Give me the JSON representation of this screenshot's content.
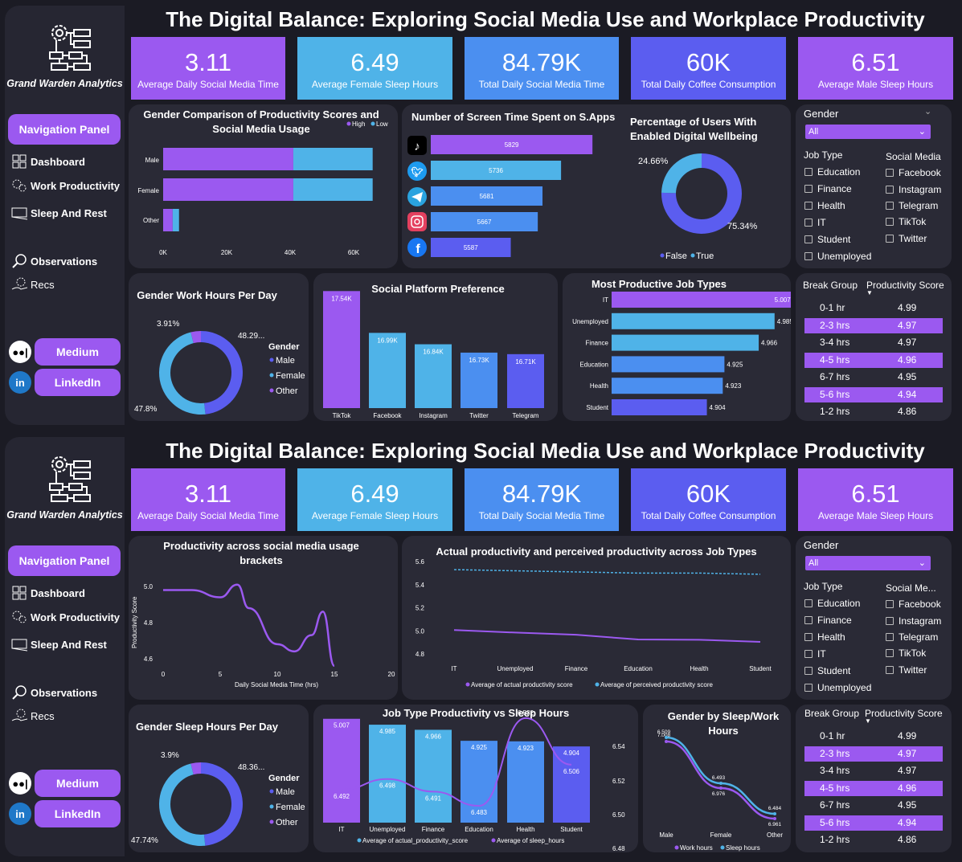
{
  "dashboards": [
    {
      "brand": "Grand Warden Analytics",
      "nav_panel": "Navigation Panel",
      "nav": [
        "Dashboard",
        "Work Productivity",
        "Sleep And Rest",
        "Observations",
        "Recs"
      ],
      "medium": "Medium",
      "linkedin": "LinkedIn",
      "title": "The Digital Balance: Exploring Social Media Use and Workplace Productivity",
      "kpis": [
        {
          "value": "3.11",
          "label": "Average Daily Social Media Time",
          "color": "#9b59f0"
        },
        {
          "value": "6.49",
          "label": "Average Female Sleep Hours",
          "color": "#4fb3e8"
        },
        {
          "value": "84.79K",
          "label": "Total Daily Social Media Time",
          "color": "#4b8ff0"
        },
        {
          "value": "60K",
          "label": "Total Daily Coffee Consumption",
          "color": "#5b5df0"
        },
        {
          "value": "6.51",
          "label": "Average Male Sleep Hours",
          "color": "#9b59f0"
        }
      ],
      "filters": {
        "gender_label": "Gender",
        "gender_value": "All",
        "job_label": "Job Type",
        "jobs": [
          "Education",
          "Finance",
          "Health",
          "IT",
          "Student",
          "Unemployed"
        ],
        "social_label": "Social Media",
        "socials": [
          "Facebook",
          "Instagram",
          "Telegram",
          "TikTok",
          "Twitter"
        ]
      },
      "break_table": {
        "col1": "Break Group",
        "col2": "Productivity Score",
        "rows": [
          [
            "0-1 hr",
            "4.99"
          ],
          [
            "2-3 hrs",
            "4.97"
          ],
          [
            "3-4 hrs",
            "4.97"
          ],
          [
            "4-5 hrs",
            "4.96"
          ],
          [
            "6-7 hrs",
            "4.95"
          ],
          [
            "5-6 hrs",
            "4.94"
          ],
          [
            "1-2 hrs",
            "4.86"
          ]
        ]
      },
      "gender_prod": {
        "title": "Gender Comparison of Productivity Scores and Social Media Usage",
        "legend": [
          "High",
          "Low"
        ],
        "colors": [
          "#9b59f0",
          "#4fb3e8"
        ],
        "categories": [
          "Male",
          "Female",
          "Other"
        ],
        "ticks": [
          "0K",
          "20K",
          "40K",
          "60K"
        ]
      },
      "screen_time": {
        "title": "Number of Screen Time Spent on S.Apps",
        "apps": [
          "tiktok-icon",
          "twitter-icon",
          "telegram-icon",
          "instagram-icon",
          "facebook-icon"
        ],
        "labels": [
          "5829",
          "5736",
          "5681",
          "5667",
          "5587"
        ]
      },
      "wellbeing": {
        "title": "Percentage of Users With Enabled Digital Wellbeing",
        "labels": [
          "24.66%",
          "75.34%"
        ],
        "legend": [
          "False",
          "True"
        ],
        "colors": [
          "#5b5df0",
          "#4fb3e8"
        ]
      },
      "work_hours": {
        "title": "Gender Work Hours Per Day",
        "labels": [
          "3.91%",
          "48.29...",
          "47.8%"
        ],
        "legend_title": "Gender",
        "legend": [
          "Male",
          "Female",
          "Other"
        ],
        "colors": [
          "#5b5df0",
          "#4fb3e8",
          "#9b59f0"
        ]
      },
      "platform_pref": {
        "title": "Social Platform Preference",
        "labels": [
          "17.54K",
          "16.99K",
          "16.84K",
          "16.73K",
          "16.71K"
        ],
        "categories": [
          "TikTok",
          "Facebook",
          "Instagram",
          "Twitter",
          "Telegram"
        ]
      },
      "job_types": {
        "title": "Most Productive Job Types",
        "categories": [
          "IT",
          "Unemployed",
          "Finance",
          "Education",
          "Health",
          "Student"
        ],
        "labels": [
          "5.007",
          "4.985",
          "4.966",
          "4.925",
          "4.923",
          "4.904"
        ]
      }
    },
    {
      "brand": "Grand Warden Analytics",
      "nav_panel": "Navigation Panel",
      "nav": [
        "Dashboard",
        "Work Productivity",
        "Sleep And Rest",
        "Observations",
        "Recs"
      ],
      "medium": "Medium",
      "linkedin": "LinkedIn",
      "title": "The Digital Balance: Exploring Social Media Use and Workplace Productivity",
      "kpis": [
        {
          "value": "3.11",
          "label": "Average Daily Social Media Time",
          "color": "#9b59f0"
        },
        {
          "value": "6.49",
          "label": "Average Female Sleep Hours",
          "color": "#4fb3e8"
        },
        {
          "value": "84.79K",
          "label": "Total Daily Social Media Time",
          "color": "#4b8ff0"
        },
        {
          "value": "60K",
          "label": "Total Daily Coffee Consumption",
          "color": "#5b5df0"
        },
        {
          "value": "6.51",
          "label": "Average Male Sleep Hours",
          "color": "#9b59f0"
        }
      ],
      "filters": {
        "gender_label": "Gender",
        "gender_value": "All",
        "job_label": "Job Type",
        "jobs": [
          "Education",
          "Finance",
          "Health",
          "IT",
          "Student",
          "Unemployed"
        ],
        "social_label": "Social Me...",
        "socials": [
          "Facebook",
          "Instagram",
          "Telegram",
          "TikTok",
          "Twitter"
        ]
      },
      "break_table": {
        "col1": "Break Group",
        "col2": "Productivity Score",
        "rows": [
          [
            "0-1 hr",
            "4.99"
          ],
          [
            "2-3 hrs",
            "4.97"
          ],
          [
            "3-4 hrs",
            "4.97"
          ],
          [
            "4-5 hrs",
            "4.96"
          ],
          [
            "6-7 hrs",
            "4.95"
          ],
          [
            "5-6 hrs",
            "4.94"
          ],
          [
            "1-2 hrs",
            "4.86"
          ]
        ]
      },
      "usage_brackets": {
        "title": "Productivity across social media usage brackets",
        "ylabel": "Productivity Score",
        "xlabel": "Daily Social Media Time (hrs)",
        "yticks": [
          "5.0",
          "4.8",
          "4.6"
        ],
        "xticks": [
          "0",
          "5",
          "10",
          "15",
          "20"
        ]
      },
      "actual_perceived": {
        "title": "Actual productivity and perceived productivity across Job Types",
        "yticks": [
          "5.6",
          "5.4",
          "5.2",
          "5.0",
          "4.8"
        ],
        "categories": [
          "IT",
          "Unemployed",
          "Finance",
          "Education",
          "Health",
          "Student"
        ],
        "legend": [
          "Average of actual productivity score",
          "Average of perceived productivity score"
        ]
      },
      "sleep_hours": {
        "title": "Gender Sleep Hours Per Day",
        "labels": [
          "3.9%",
          "48.36...",
          "47.74%"
        ],
        "legend_title": "Gender",
        "legend": [
          "Male",
          "Female",
          "Other"
        ]
      },
      "job_sleep": {
        "title": "Job Type Productivity vs Sleep Hours",
        "categories": [
          "IT",
          "Unemployed",
          "Finance",
          "Education",
          "Health",
          "Student"
        ],
        "bar_labels": [
          "5.007",
          "4.985",
          "4.966",
          "4.925",
          "4.923",
          "4.904"
        ],
        "line_labels": [
          "6.492",
          "6.498",
          "6.491",
          "6.483",
          "6.532",
          "6.506"
        ],
        "right_ticks": [
          "6.54",
          "6.52",
          "6.50",
          "6.48"
        ],
        "legend": [
          "Average of actual_productivity_score",
          "Average of sleep_hours"
        ]
      },
      "gender_sleep_work": {
        "title": "Gender by Sleep/Work Hours",
        "categories": [
          "Male",
          "Female",
          "Other"
        ],
        "work_labels": [
          "7.008",
          "6.976",
          "6.961"
        ],
        "sleep_labels": [
          "6.509",
          "6.493",
          "6.484"
        ],
        "legend": [
          "Work hours",
          "Sleep hours"
        ]
      }
    }
  ],
  "chart_data": [
    {
      "type": "bar",
      "title": "Gender Comparison of Productivity Scores and Social Media Usage",
      "categories": [
        "Male",
        "Female",
        "Other"
      ],
      "series": [
        {
          "name": "High",
          "values": [
            41000,
            41000,
            3000
          ]
        },
        {
          "name": "Low",
          "values": [
            25000,
            25000,
            2000
          ]
        }
      ]
    },
    {
      "type": "bar",
      "title": "Number of Screen Time Spent on S.Apps",
      "categories": [
        "TikTok",
        "Twitter",
        "Telegram",
        "Instagram",
        "Facebook"
      ],
      "values": [
        5829,
        5736,
        5681,
        5667,
        5587
      ]
    },
    {
      "type": "pie",
      "title": "Percentage of Users With Enabled Digital Wellbeing",
      "categories": [
        "False",
        "True"
      ],
      "values": [
        75.34,
        24.66
      ]
    },
    {
      "type": "pie",
      "title": "Gender Work Hours Per Day",
      "categories": [
        "Male",
        "Female",
        "Other"
      ],
      "values": [
        48.29,
        47.8,
        3.91
      ]
    },
    {
      "type": "bar",
      "title": "Social Platform Preference",
      "categories": [
        "TikTok",
        "Facebook",
        "Instagram",
        "Twitter",
        "Telegram"
      ],
      "values": [
        17540,
        16990,
        16840,
        16730,
        16710
      ]
    },
    {
      "type": "bar",
      "title": "Most Productive Job Types",
      "categories": [
        "IT",
        "Unemployed",
        "Finance",
        "Education",
        "Health",
        "Student"
      ],
      "values": [
        5.007,
        4.985,
        4.966,
        4.925,
        4.923,
        4.904
      ]
    },
    {
      "type": "line",
      "title": "Productivity across social media usage brackets",
      "xlabel": "Daily Social Media Time (hrs)",
      "ylabel": "Productivity Score",
      "x": [
        0,
        2.5,
        5,
        6.5,
        7.5,
        10,
        11.5,
        13,
        14,
        15
      ],
      "values": [
        4.98,
        4.98,
        4.94,
        5.01,
        4.88,
        4.68,
        4.64,
        4.73,
        4.86,
        4.56
      ],
      "xlim": [
        0,
        20
      ],
      "ylim": [
        4.5,
        5.05
      ]
    },
    {
      "type": "line",
      "title": "Actual productivity and perceived productivity across Job Types",
      "categories": [
        "IT",
        "Unemployed",
        "Finance",
        "Education",
        "Health",
        "Student"
      ],
      "series": [
        {
          "name": "Average of actual productivity score",
          "values": [
            5.007,
            4.985,
            4.966,
            4.925,
            4.923,
            4.904
          ]
        },
        {
          "name": "Average of perceived productivity score",
          "values": [
            5.53,
            5.52,
            5.51,
            5.5,
            5.5,
            5.49
          ]
        }
      ],
      "ylim": [
        4.8,
        5.6
      ]
    },
    {
      "type": "pie",
      "title": "Gender Sleep Hours Per Day",
      "categories": [
        "Male",
        "Female",
        "Other"
      ],
      "values": [
        48.36,
        47.74,
        3.9
      ]
    },
    {
      "type": "bar",
      "title": "Job Type Productivity vs Sleep Hours",
      "categories": [
        "IT",
        "Unemployed",
        "Finance",
        "Education",
        "Health",
        "Student"
      ],
      "series": [
        {
          "name": "Average of actual_productivity_score",
          "values": [
            5.007,
            4.985,
            4.966,
            4.925,
            4.923,
            4.904
          ]
        },
        {
          "name": "Average of sleep_hours",
          "values": [
            6.492,
            6.498,
            6.491,
            6.483,
            6.532,
            6.506
          ]
        }
      ]
    },
    {
      "type": "line",
      "title": "Gender by Sleep/Work Hours",
      "categories": [
        "Male",
        "Female",
        "Other"
      ],
      "series": [
        {
          "name": "Work hours",
          "values": [
            7.008,
            6.976,
            6.961
          ]
        },
        {
          "name": "Sleep hours",
          "values": [
            6.509,
            6.493,
            6.484
          ]
        }
      ]
    }
  ]
}
